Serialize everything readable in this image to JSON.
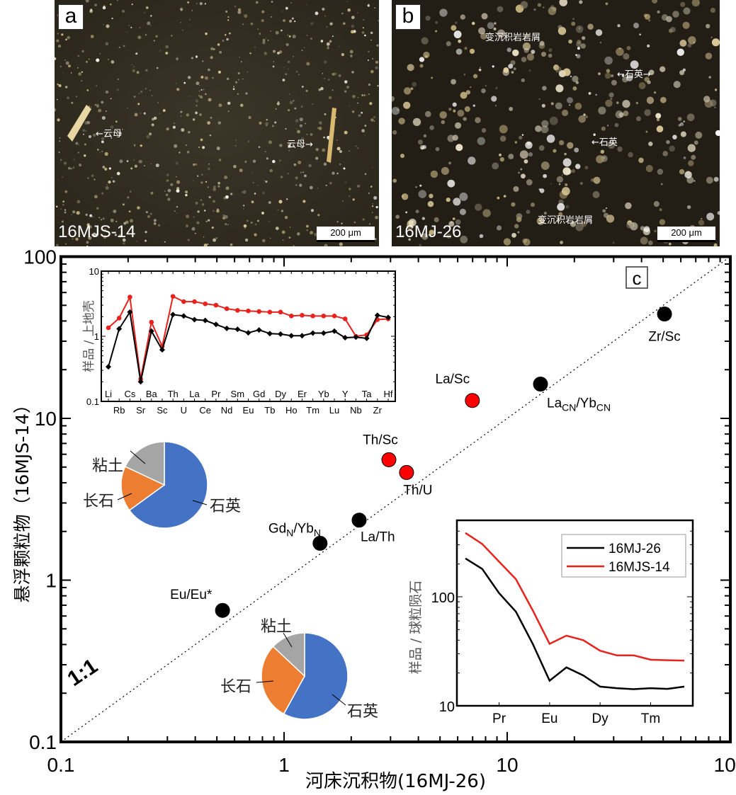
{
  "photos": [
    {
      "panel": "a",
      "sample": "16MJS-14",
      "scale_bar": "200 μm",
      "annotations": [
        "←云母",
        "云母→"
      ]
    },
    {
      "panel": "b",
      "sample": "16MJ-26",
      "scale_bar": "200 μm",
      "annotations": [
        "变沉积岩岩屑",
        "←石英→",
        "←石英",
        "变沉积岩岩屑"
      ]
    }
  ],
  "chart_data": [
    {
      "id": "main",
      "type": "scatter",
      "panel_label": "c",
      "xlabel": "河床沉积物(16MJ-26)",
      "ylabel": "悬浮颗粒物（16MJS-14）",
      "xscale": "log",
      "yscale": "log",
      "xlim": [
        0.1,
        100
      ],
      "ylim": [
        0.1,
        100
      ],
      "xticks": [
        "0.1",
        "1",
        "10",
        "100"
      ],
      "yticks": [
        "0.1",
        "1",
        "10",
        "100"
      ],
      "reference_line": {
        "label": "1:1",
        "style": "dotted"
      },
      "points": [
        {
          "label": "Eu/Eu*",
          "x": 0.53,
          "y": 0.65,
          "color": "#000000"
        },
        {
          "label": "GdN/YbN",
          "label_main": "Gd",
          "sub1": "N",
          "mid": "/Yb",
          "sub2": "N",
          "x": 1.45,
          "y": 1.69,
          "color": "#000000"
        },
        {
          "label": "La/Th",
          "x": 2.17,
          "y": 2.35,
          "color": "#000000"
        },
        {
          "label": "Th/Sc",
          "x": 2.95,
          "y": 5.55,
          "color": "#ff0000"
        },
        {
          "label": "Th/U",
          "x": 3.54,
          "y": 4.63,
          "color": "#ff0000"
        },
        {
          "label": "La/Sc",
          "x": 6.98,
          "y": 12.9,
          "color": "#ff0000"
        },
        {
          "label": "LaCN/YbCN",
          "label_main": "La",
          "sub1": "CN",
          "mid": "/Yb",
          "sub2": "CN",
          "x": 14.1,
          "y": 16.3,
          "color": "#000000"
        },
        {
          "label": "Zr/Sc",
          "x": 50.7,
          "y": 44.2,
          "color": "#000000"
        }
      ]
    },
    {
      "id": "spider",
      "type": "line",
      "ylabel": "样品 / 上地壳",
      "yscale": "log",
      "ylim": [
        0.1,
        10
      ],
      "yticks": [
        "0.1",
        "1",
        "10"
      ],
      "categories": [
        "Li",
        "Rb",
        "Cs",
        "Sr",
        "Ba",
        "Sc",
        "Th",
        "U",
        "La",
        "Ce",
        "Pr",
        "Nd",
        "Sm",
        "Eu",
        "Gd",
        "Tb",
        "Dy",
        "Ho",
        "Er",
        "Tm",
        "Yb",
        "Lu",
        "Y",
        "Nb",
        "Ta",
        "Zr",
        "Hf"
      ],
      "series": [
        {
          "name": "16MJS-14",
          "color": "#e8231d",
          "marker": "circle",
          "values": [
            1.35,
            1.9,
            4.0,
            0.22,
            1.65,
            0.7,
            4.1,
            3.4,
            3.4,
            3.15,
            3.0,
            2.65,
            2.5,
            2.45,
            2.4,
            2.35,
            2.35,
            2.05,
            2.1,
            2.05,
            2.05,
            2.05,
            1.85,
            1.0,
            1.05,
            1.8,
            1.85
          ]
        },
        {
          "name": "16MJ-26",
          "color": "#000000",
          "marker": "diamond",
          "values": [
            0.34,
            1.3,
            2.35,
            0.2,
            1.2,
            0.62,
            2.15,
            2.05,
            1.8,
            1.75,
            1.52,
            1.32,
            1.28,
            1.13,
            1.25,
            1.1,
            1.08,
            1.02,
            1.02,
            1.12,
            1.12,
            1.2,
            0.95,
            0.97,
            0.93,
            2.1,
            1.95
          ]
        }
      ]
    },
    {
      "id": "ree",
      "type": "line",
      "ylabel": "样品 / 球粒陨石",
      "yscale": "log",
      "ylim": [
        10,
        400
      ],
      "yticks": [
        "10",
        "100"
      ],
      "categories": [
        "La",
        "Ce",
        "Pr",
        "Nd",
        "Sm",
        "Eu",
        "Gd",
        "Tb",
        "Dy",
        "Ho",
        "Er",
        "Tm",
        "Yb",
        "Lu"
      ],
      "xtick_labels": [
        "Pr",
        "Eu",
        "Dy",
        "Tm"
      ],
      "legend": "top-right",
      "series": [
        {
          "name": "16MJ-26",
          "color": "#000000",
          "values": [
            225,
            180,
            108,
            73,
            37,
            17,
            22.5,
            19,
            15,
            14.5,
            14.2,
            14.5,
            14.3,
            15
          ]
        },
        {
          "name": "16MJS-14",
          "color": "#e8231d",
          "values": [
            385,
            305,
            210,
            145,
            75,
            37,
            44,
            40,
            32,
            29,
            29,
            26.5,
            26.2,
            26
          ]
        }
      ]
    },
    {
      "id": "pie-suspended",
      "type": "pie",
      "categories": [
        "石英",
        "长石",
        "粘土"
      ],
      "values": [
        65,
        17,
        18
      ],
      "colors": [
        "#4472c4",
        "#ed7d31",
        "#a5a5a5"
      ]
    },
    {
      "id": "pie-riverbed",
      "type": "pie",
      "categories": [
        "石英",
        "长石",
        "粘土"
      ],
      "values": [
        58,
        29,
        13
      ],
      "colors": [
        "#4472c4",
        "#ed7d31",
        "#a5a5a5"
      ]
    }
  ]
}
